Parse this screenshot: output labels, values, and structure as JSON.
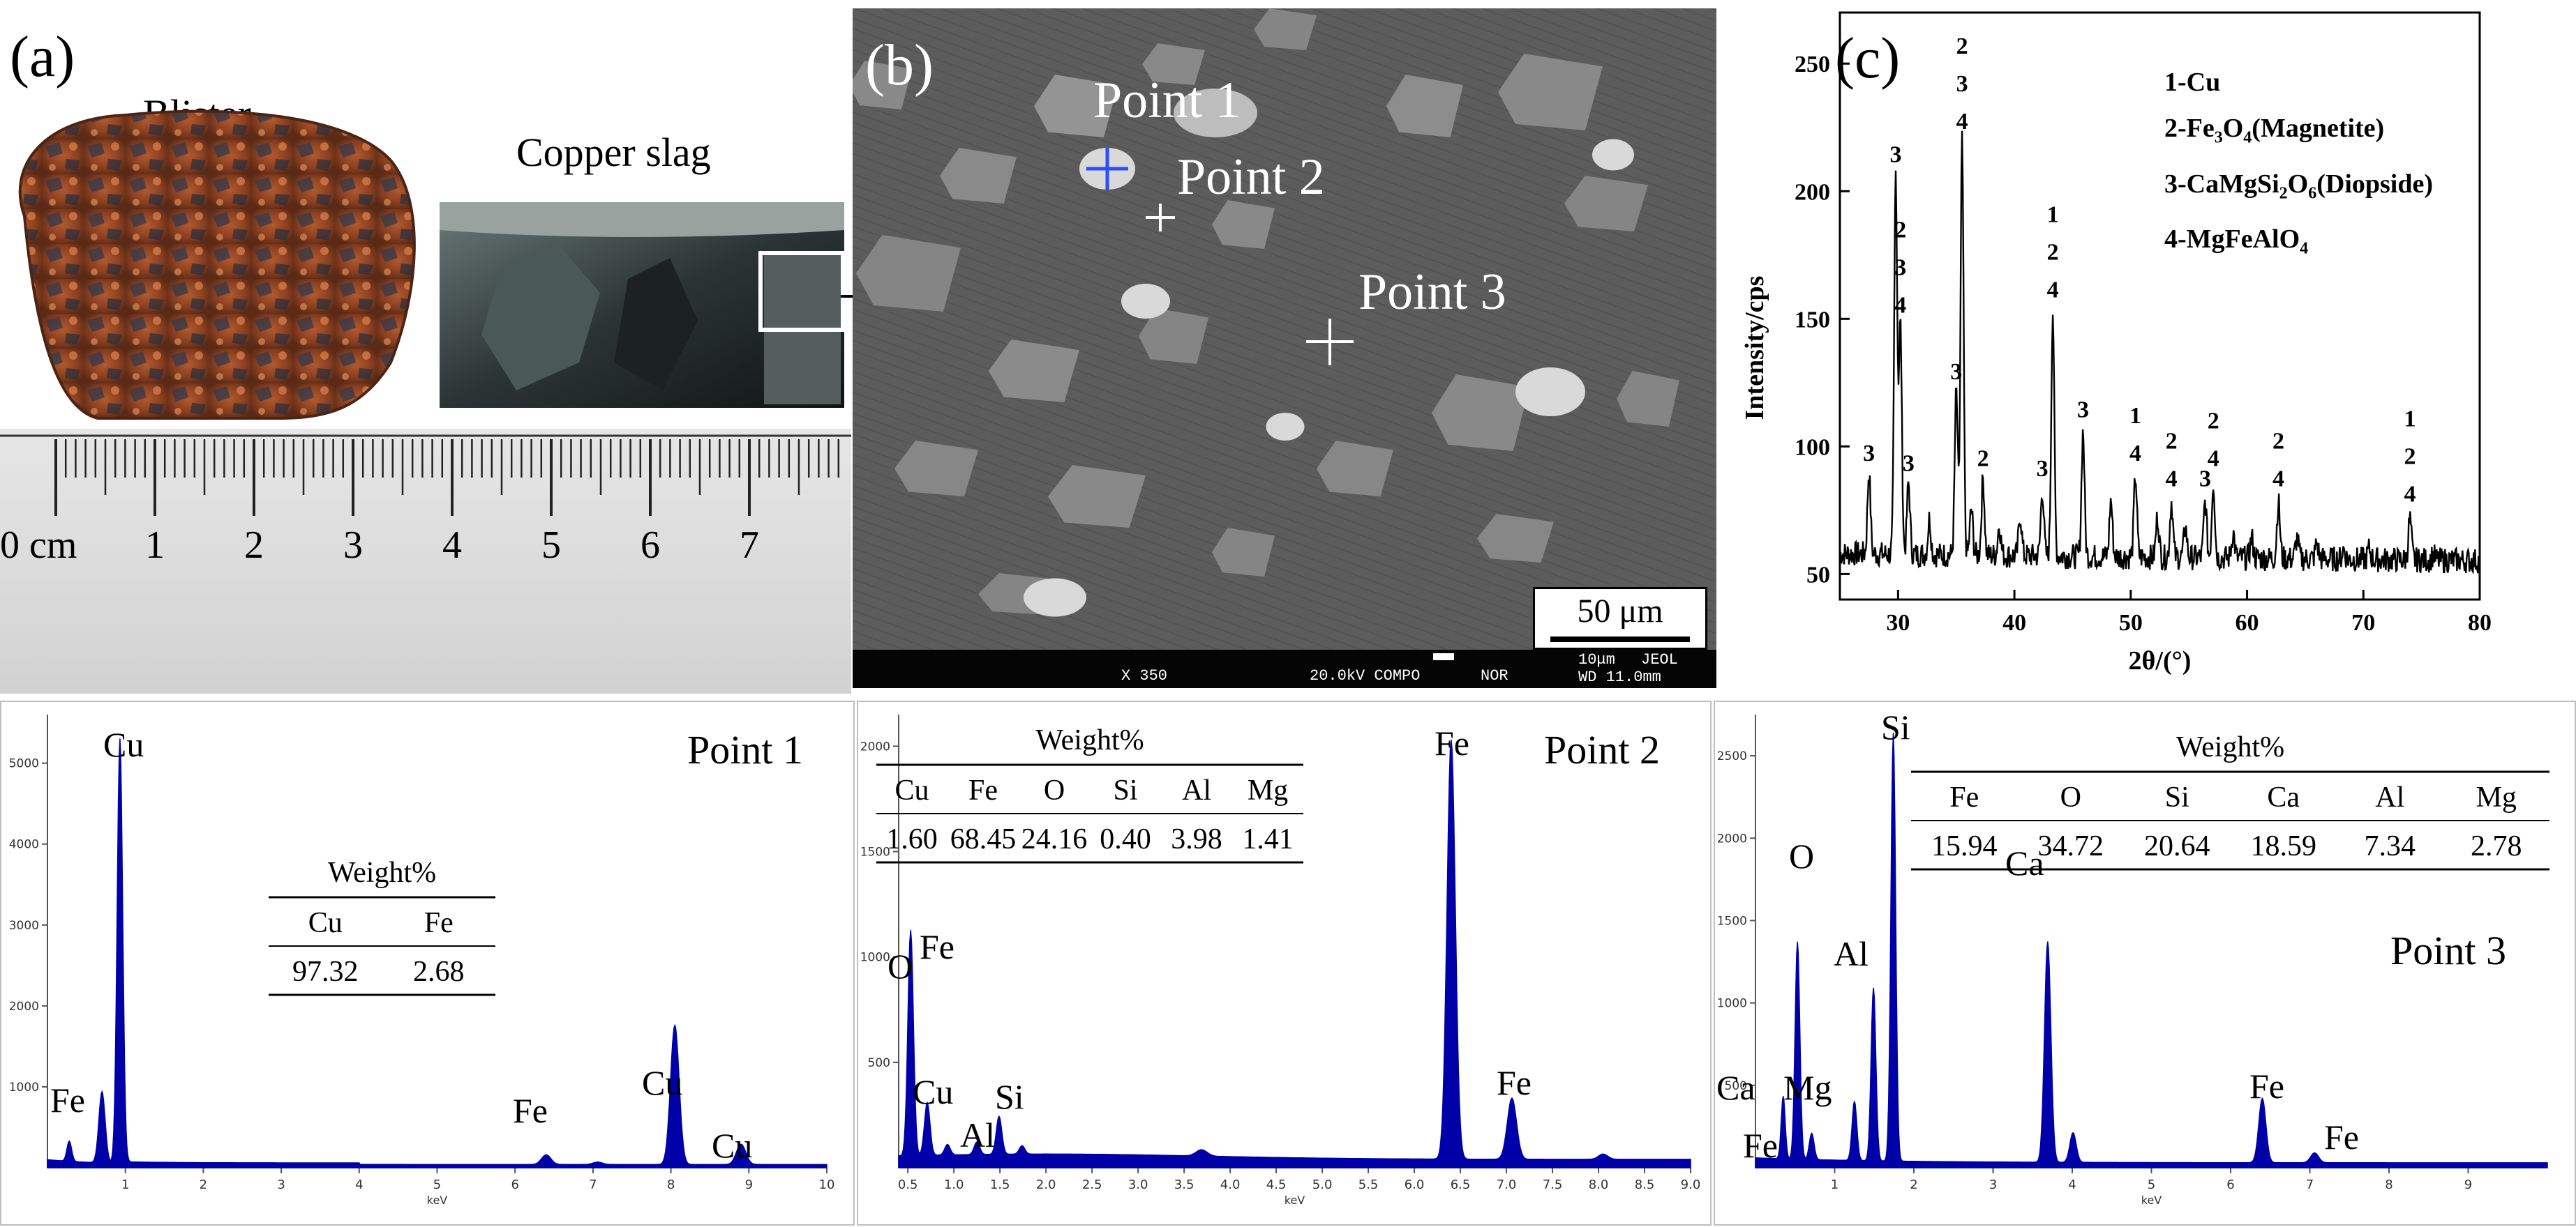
{
  "panel_a": {
    "letter": "(a)",
    "blister_label": "Blister",
    "slag_label": "Copper slag",
    "ruler_unit": "0 cm",
    "ruler_numbers": [
      "1",
      "2",
      "3",
      "4",
      "5",
      "6",
      "7"
    ]
  },
  "panel_b": {
    "letter": "(b)",
    "points": [
      {
        "label": "Point 1",
        "marker_color": "#2a4dff"
      },
      {
        "label": "Point 2",
        "marker_color": "#ffffff"
      },
      {
        "label": "Point 3",
        "marker_color": "#ffffff"
      }
    ],
    "scale_bar_text": "50 μm",
    "info_bar": {
      "mag": "X 350",
      "kv": "20.0kV COMPO",
      "mode": "NOR",
      "scale": "10μm",
      "maker": "JEOL",
      "wd": "WD 11.0mm"
    }
  },
  "panel_c": {
    "letter": "(c)",
    "legend": [
      "1-Cu",
      "2-Fe3O4(Magnetite)",
      "3-CaMgSi2O6(Diopside)",
      "4-MgFeAlO4"
    ],
    "chart_data": {
      "type": "line",
      "xlabel": "2θ/(°)",
      "ylabel": "Intensity/cps",
      "xlim": [
        25,
        80
      ],
      "ylim": [
        40,
        270
      ],
      "xticks": [
        30,
        40,
        50,
        60,
        70,
        80
      ],
      "yticks": [
        50,
        100,
        150,
        200,
        250
      ],
      "baseline": 58,
      "peaks": [
        {
          "x": 27.5,
          "y": 90,
          "labels": [
            "3"
          ]
        },
        {
          "x": 29.8,
          "y": 207,
          "labels": [
            "3"
          ]
        },
        {
          "x": 30.2,
          "y": 148,
          "labels": [
            "2",
            "3",
            "4"
          ]
        },
        {
          "x": 30.9,
          "y": 86,
          "labels": [
            "3"
          ]
        },
        {
          "x": 35.0,
          "y": 122,
          "labels": [
            "3"
          ]
        },
        {
          "x": 35.5,
          "y": 220,
          "labels": [
            "2",
            "3",
            "4"
          ]
        },
        {
          "x": 37.3,
          "y": 88,
          "labels": [
            "2"
          ]
        },
        {
          "x": 42.4,
          "y": 84,
          "labels": [
            "3"
          ]
        },
        {
          "x": 43.3,
          "y": 154,
          "labels": [
            "1",
            "2",
            "4"
          ]
        },
        {
          "x": 45.9,
          "y": 107,
          "labels": [
            "3"
          ]
        },
        {
          "x": 50.4,
          "y": 90,
          "labels": [
            "1",
            "4"
          ]
        },
        {
          "x": 53.5,
          "y": 80,
          "labels": [
            "2",
            "4"
          ]
        },
        {
          "x": 56.4,
          "y": 80,
          "labels": [
            "3"
          ]
        },
        {
          "x": 57.1,
          "y": 88,
          "labels": [
            "2",
            "4"
          ]
        },
        {
          "x": 62.7,
          "y": 80,
          "labels": [
            "2",
            "4"
          ]
        },
        {
          "x": 74.0,
          "y": 74,
          "labels": [
            "1",
            "2",
            "4"
          ]
        }
      ],
      "minor_peaks": [
        {
          "x": 32.7,
          "y": 72
        },
        {
          "x": 36.3,
          "y": 76
        },
        {
          "x": 38.7,
          "y": 70
        },
        {
          "x": 40.5,
          "y": 74
        },
        {
          "x": 48.3,
          "y": 80
        },
        {
          "x": 52.3,
          "y": 74
        },
        {
          "x": 54.7,
          "y": 70
        },
        {
          "x": 58.8,
          "y": 68
        },
        {
          "x": 60.4,
          "y": 66
        },
        {
          "x": 64.3,
          "y": 66
        },
        {
          "x": 66.0,
          "y": 64
        },
        {
          "x": 68.3,
          "y": 62
        },
        {
          "x": 70.5,
          "y": 62
        },
        {
          "x": 76.0,
          "y": 60
        }
      ]
    }
  },
  "eds": [
    {
      "title": "Point 1",
      "xmax": 10,
      "xticks": [
        "1",
        "2",
        "3",
        "4",
        "5",
        "6",
        "7",
        "8",
        "9",
        "10"
      ],
      "yticks": [
        "1000",
        "2000",
        "3000",
        "4000",
        "5000"
      ],
      "xlabel": "keV",
      "table": {
        "title": "Weight%",
        "headers": [
          "Cu",
          "Fe"
        ],
        "values": [
          "97.32",
          "2.68"
        ]
      },
      "peak_labels": [
        "Cu",
        "Fe",
        "Fe",
        "Cu",
        "Cu"
      ]
    },
    {
      "title": "Point 2",
      "xmax": 9,
      "xticks": [
        "0.5",
        "1.0",
        "1.5",
        "2.0",
        "2.5",
        "3.0",
        "3.5",
        "4.0",
        "4.5",
        "5.0",
        "5.5",
        "6.0",
        "6.5",
        "7.0",
        "7.5",
        "8.0",
        "8.5",
        "9.0"
      ],
      "yticks": [
        "500",
        "1000",
        "1500",
        "2000"
      ],
      "xlabel": "keV",
      "table": {
        "title": "Weight%",
        "headers": [
          "Cu",
          "Fe",
          "O",
          "Si",
          "Al",
          "Mg"
        ],
        "values": [
          "1.60",
          "68.45",
          "24.16",
          "0.40",
          "3.98",
          "1.41"
        ]
      },
      "peak_labels": [
        "O",
        "Fe",
        "Cu",
        "Al",
        "Si",
        "Fe",
        "Fe"
      ]
    },
    {
      "title": "Point 3",
      "xmax": 10,
      "xticks": [
        "1",
        "2",
        "3",
        "4",
        "5",
        "6",
        "7",
        "8",
        "9"
      ],
      "yticks": [
        "500",
        "1000",
        "1500",
        "2000",
        "2500"
      ],
      "xlabel": "keV",
      "table": {
        "title": "Weight%",
        "headers": [
          "Fe",
          "O",
          "Si",
          "Ca",
          "Al",
          "Mg"
        ],
        "values": [
          "15.94",
          "34.72",
          "20.64",
          "18.59",
          "7.34",
          "2.78"
        ]
      },
      "peak_labels": [
        "O",
        "Si",
        "Al",
        "Ca",
        "Ca",
        "Mg",
        "Fe",
        "Fe",
        "Fe"
      ]
    }
  ],
  "colors": {
    "xrd_line": "#000000",
    "eds_fill": "#0000a8",
    "sem_bg": "#5a5a5a",
    "copper": "#c46a3a"
  }
}
